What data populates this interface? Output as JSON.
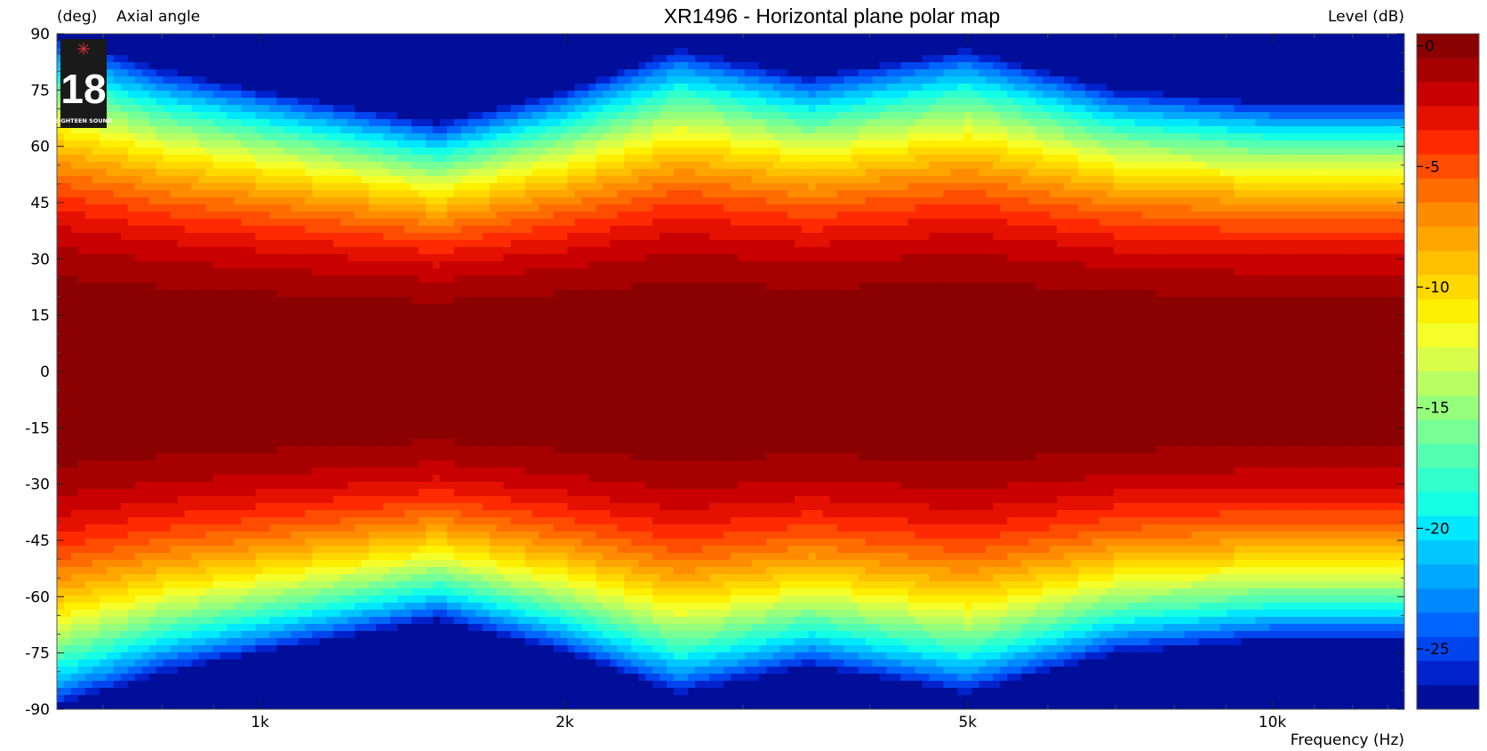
{
  "chart_data": {
    "type": "heatmap",
    "title": "XR1496 - Horizontal plane polar map",
    "ylabel_unit": "(deg)",
    "ylabel": "Axial angle",
    "xlabel": "Frequency  (Hz)",
    "colorbar_label": "Level  (dB)",
    "x_scale": "log",
    "xlim": [
      630,
      13500
    ],
    "ylim": [
      -90,
      90
    ],
    "x_ticks": [
      {
        "value": 1000,
        "label": "1k"
      },
      {
        "value": 2000,
        "label": "2k"
      },
      {
        "value": 5000,
        "label": "5k"
      },
      {
        "value": 10000,
        "label": "10k"
      }
    ],
    "y_ticks": [
      {
        "value": 90,
        "label": "90"
      },
      {
        "value": 75,
        "label": "75"
      },
      {
        "value": 60,
        "label": "60"
      },
      {
        "value": 45,
        "label": "45"
      },
      {
        "value": 30,
        "label": "30"
      },
      {
        "value": 15,
        "label": "15"
      },
      {
        "value": 0,
        "label": "0"
      },
      {
        "value": -15,
        "label": "-15"
      },
      {
        "value": -30,
        "label": "-30"
      },
      {
        "value": -45,
        "label": "-45"
      },
      {
        "value": -60,
        "label": "-60"
      },
      {
        "value": -75,
        "label": "-75"
      },
      {
        "value": -90,
        "label": "-90"
      }
    ],
    "colorbar": {
      "range": [
        -27,
        0
      ],
      "step": 1,
      "ticks": [
        {
          "value": 0,
          "label": "0"
        },
        {
          "value": -5,
          "label": "-5"
        },
        {
          "value": -10,
          "label": "-10"
        },
        {
          "value": -15,
          "label": "-15"
        },
        {
          "value": -20,
          "label": "-20"
        },
        {
          "value": -25,
          "label": "-25"
        }
      ],
      "colors": [
        "#8b0000",
        "#a60000",
        "#c80000",
        "#e41000",
        "#ff2a00",
        "#ff4d00",
        "#ff6d00",
        "#ff8c00",
        "#ffa500",
        "#ffc000",
        "#ffd800",
        "#ffef00",
        "#f5ff2a",
        "#d8ff4a",
        "#b8ff64",
        "#96ff7c",
        "#76ff96",
        "#55ffb2",
        "#33ffcc",
        "#14ffe6",
        "#00e8ff",
        "#00c8ff",
        "#00a8ff",
        "#0088ff",
        "#0066ff",
        "#0044ee",
        "#0022cc",
        "#000e99"
      ]
    },
    "beamwidth_minus6dB_deg": [
      {
        "freq": 630,
        "half_angle": 50
      },
      {
        "freq": 800,
        "half_angle": 45
      },
      {
        "freq": 1000,
        "half_angle": 42
      },
      {
        "freq": 1500,
        "half_angle": 37
      },
      {
        "freq": 2000,
        "half_angle": 42
      },
      {
        "freq": 2600,
        "half_angle": 48
      },
      {
        "freq": 3500,
        "half_angle": 44
      },
      {
        "freq": 5000,
        "half_angle": 48
      },
      {
        "freq": 7000,
        "half_angle": 42
      },
      {
        "freq": 10000,
        "half_angle": 40
      },
      {
        "freq": 13500,
        "half_angle": 40
      }
    ],
    "logo": {
      "text": "18",
      "subtext": "EIGHTEEN SOUND"
    }
  }
}
